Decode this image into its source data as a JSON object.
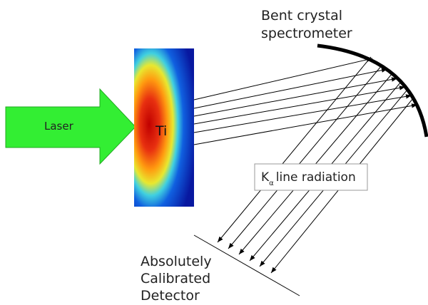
{
  "labels": {
    "spectrometer": [
      "Bent crystal",
      "spectrometer"
    ],
    "laser": "Laser",
    "target": "Ti",
    "radiation": {
      "symbol": "K",
      "subscript": "α",
      "text": "line radiation"
    },
    "detector": [
      "Absolutely",
      "Calibrated",
      "Detector"
    ]
  }
}
